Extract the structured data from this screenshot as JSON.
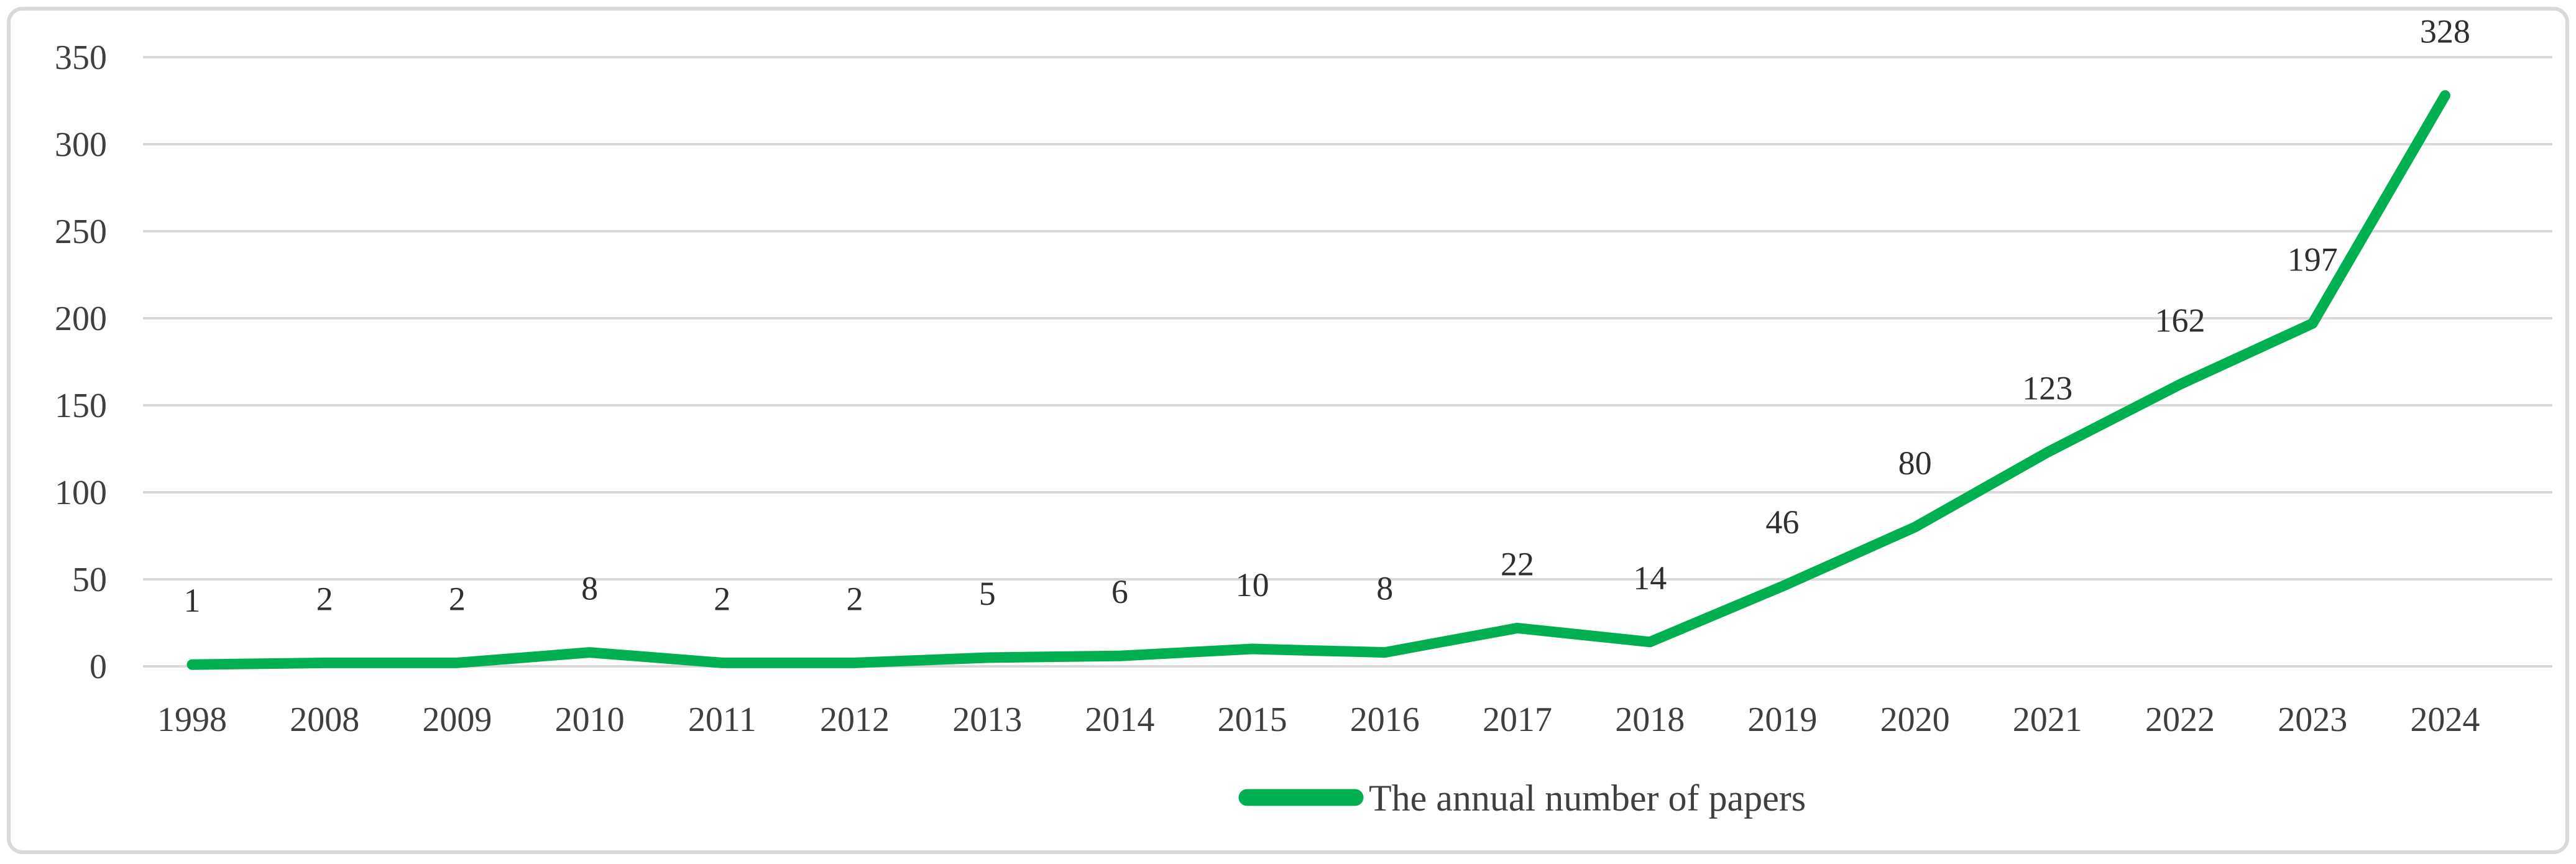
{
  "figure": {
    "background": "#ffffff",
    "border_color": "#d9d9d9"
  },
  "chart_data": {
    "type": "line",
    "title": "",
    "xlabel": "",
    "ylabel": "",
    "categories": [
      "1998",
      "2008",
      "2009",
      "2010",
      "2011",
      "2012",
      "2013",
      "2014",
      "2015",
      "2016",
      "2017",
      "2018",
      "2019",
      "2020",
      "2021",
      "2022",
      "2023",
      "2024"
    ],
    "series": [
      {
        "name": "The annual number of papers",
        "values": [
          1,
          2,
          2,
          8,
          2,
          2,
          5,
          6,
          10,
          8,
          22,
          14,
          46,
          80,
          123,
          162,
          197,
          328
        ],
        "color": "#00b050"
      }
    ],
    "ylim": [
      0,
      350
    ],
    "yticks": [
      0,
      50,
      100,
      150,
      200,
      250,
      300,
      350
    ],
    "grid": "horizontal",
    "gridline_color": "#d9d9d9",
    "tick_text_color": "#3f3f3f",
    "data_labels": "above",
    "legend_position": "bottom-center"
  },
  "legend": {
    "label": "The annual number of papers",
    "marker_color": "#00b050"
  }
}
